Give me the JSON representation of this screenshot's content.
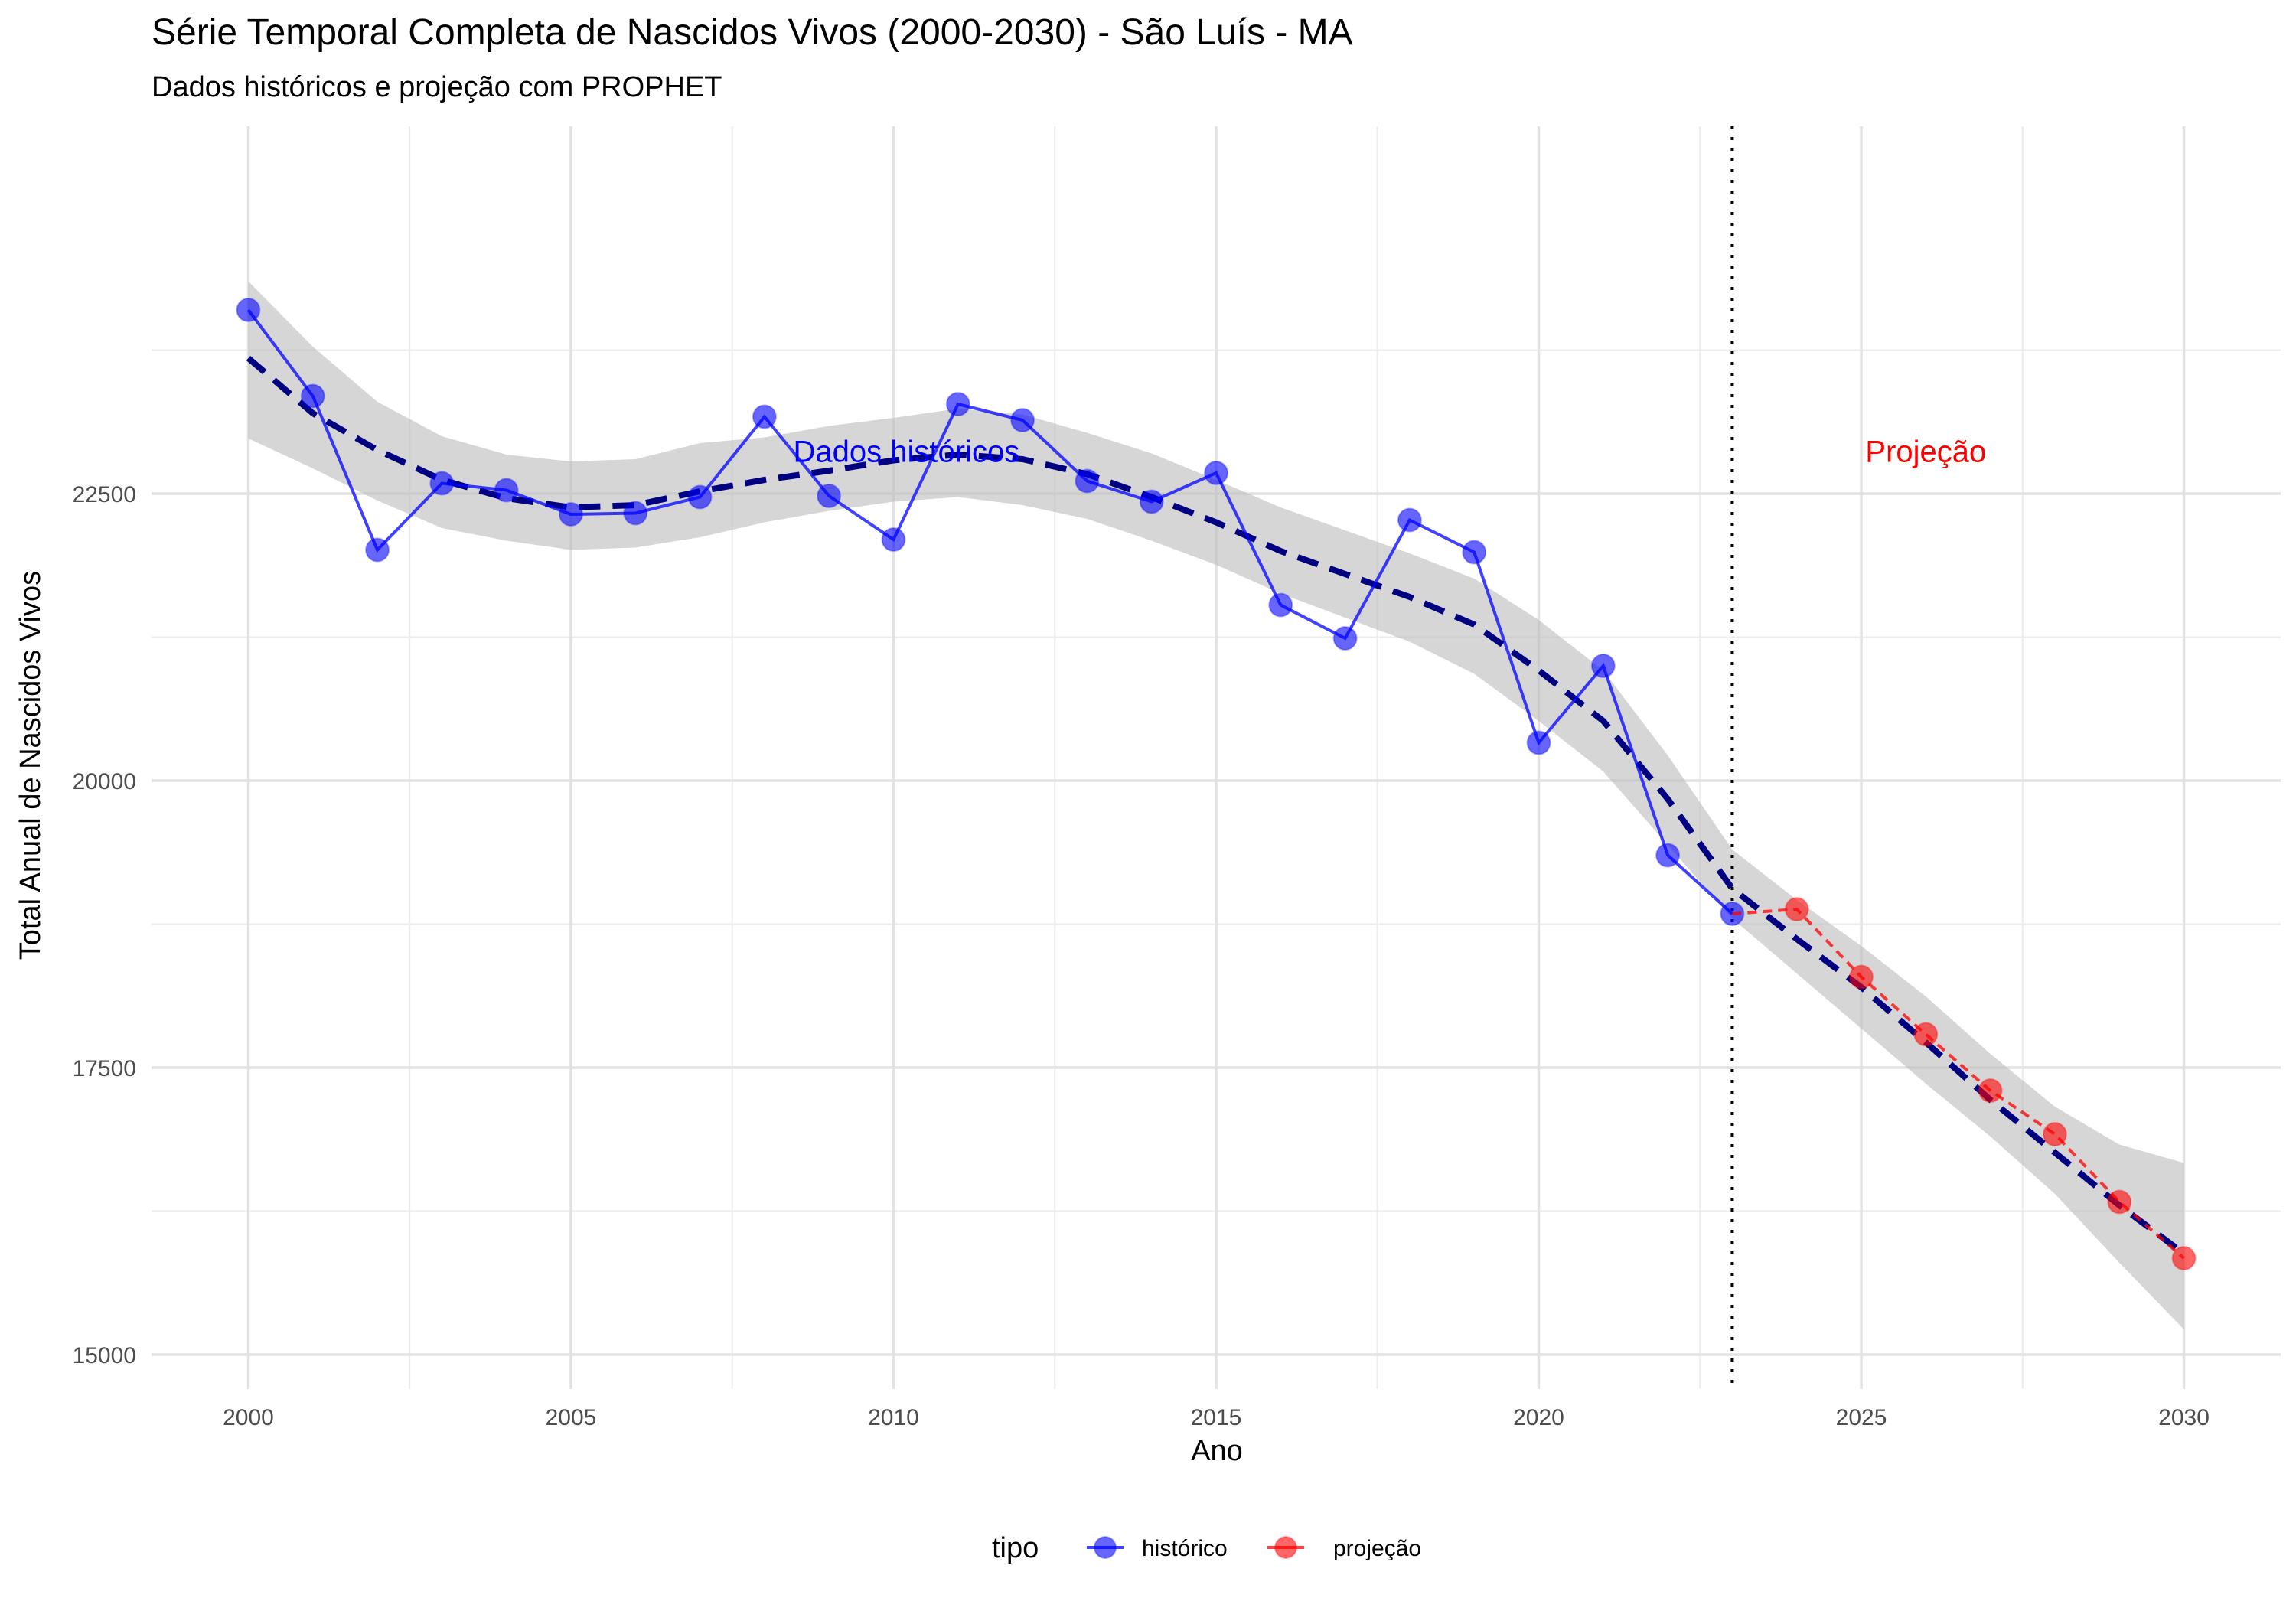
{
  "chart_data": {
    "type": "line",
    "title": "Série Temporal Completa de Nascidos Vivos (2000-2030) -  São Luís - MA",
    "subtitle": "Dados históricos e projeção com PROPHET",
    "xlabel": "Ano",
    "ylabel": "Total Anual de Nascidos Vivos",
    "xlim": [
      1998.5,
      2031.5
    ],
    "ylim": [
      14700,
      25700
    ],
    "x_ticks": [
      2000,
      2005,
      2010,
      2015,
      2020,
      2025,
      2030
    ],
    "x_tick_labels": [
      "2000",
      "2005",
      "2010",
      "2015",
      "2020",
      "2025",
      "2030"
    ],
    "y_ticks": [
      15000,
      17500,
      20000,
      22500
    ],
    "y_tick_labels": [
      "15000",
      "17500",
      "20000",
      "22500"
    ],
    "grid": true,
    "legend": {
      "title": "tipo",
      "position": "bottom",
      "entries": [
        {
          "label": "histórico",
          "color": "#0000ff"
        },
        {
          "label": "projeção",
          "color": "#ff0000"
        }
      ]
    },
    "series": [
      {
        "name": "histórico",
        "color": "#0000ff",
        "style": "solid line with points",
        "x": [
          2000,
          2001,
          2002,
          2003,
          2004,
          2005,
          2006,
          2007,
          2008,
          2009,
          2010,
          2011,
          2012,
          2013,
          2014,
          2015,
          2016,
          2017,
          2018,
          2019,
          2020,
          2021,
          2022,
          2023
        ],
        "y": [
          24100,
          23350,
          22010,
          22590,
          22530,
          22320,
          22330,
          22470,
          23170,
          22480,
          22100,
          23280,
          23140,
          22610,
          22430,
          22680,
          21530,
          21240,
          22270,
          21990,
          20330,
          21000,
          19350,
          18840
        ]
      },
      {
        "name": "projeção",
        "color": "#ff0000",
        "style": "dashed line with points",
        "x": [
          2023,
          2024,
          2025,
          2026,
          2027,
          2028,
          2029,
          2030
        ],
        "y": [
          18840,
          18880,
          18290,
          17790,
          17300,
          16920,
          16330,
          15840
        ]
      }
    ],
    "trend": {
      "color": "#000080",
      "style": "dashed",
      "x": [
        2000,
        2001,
        2002,
        2003,
        2004,
        2005,
        2006,
        2007,
        2008,
        2009,
        2010,
        2011,
        2012,
        2013,
        2014,
        2015,
        2016,
        2017,
        2018,
        2019,
        2020,
        2021,
        2022,
        2023,
        2024,
        2025,
        2026,
        2027,
        2028,
        2029,
        2030
      ],
      "y": [
        23680,
        23200,
        22880,
        22620,
        22460,
        22380,
        22400,
        22520,
        22620,
        22700,
        22790,
        22840,
        22800,
        22670,
        22470,
        22250,
        22000,
        21800,
        21600,
        21360,
        20960,
        20520,
        19840,
        19060,
        18620,
        18200,
        17720,
        17220,
        16760,
        16300,
        15880
      ],
      "band_lower": [
        22980,
        22720,
        22440,
        22200,
        22090,
        22010,
        22030,
        22120,
        22250,
        22350,
        22430,
        22470,
        22400,
        22280,
        22090,
        21880,
        21630,
        21420,
        21210,
        20930,
        20520,
        20080,
        19440,
        18800,
        18320,
        17840,
        17360,
        16900,
        16400,
        15800,
        15220
      ],
      "band_upper": [
        24350,
        23780,
        23300,
        23000,
        22840,
        22780,
        22800,
        22940,
        22990,
        23090,
        23160,
        23240,
        23190,
        23030,
        22850,
        22620,
        22380,
        22180,
        21980,
        21760,
        21400,
        20960,
        20220,
        19400,
        18960,
        18560,
        18120,
        17620,
        17160,
        16830,
        16670
      ]
    },
    "cutoff_x": 2023,
    "annotations": [
      {
        "text": "Dados históricos",
        "x": 2010.2,
        "y": 22870,
        "color": "#0000ff"
      },
      {
        "text": "Projeção",
        "x": 2026,
        "y": 22870,
        "color": "#ff0000"
      }
    ]
  }
}
